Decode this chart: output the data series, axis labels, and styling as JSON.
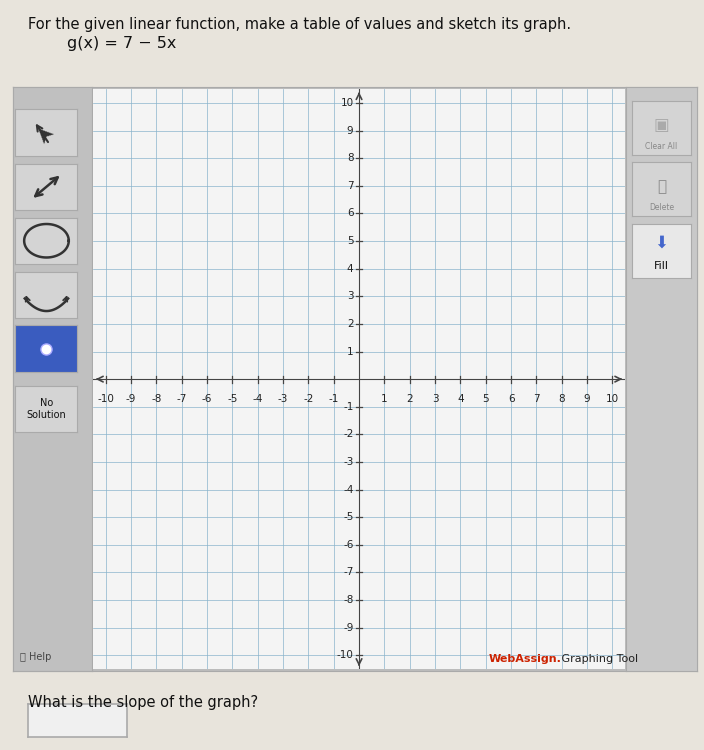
{
  "title_text": "For the given linear function, make a table of values and sketch its graph.",
  "equation": "g(x) = 7 − 5x",
  "xlim": [
    -10,
    10
  ],
  "ylim": [
    -10,
    10
  ],
  "xticks": [
    -10,
    -9,
    -8,
    -7,
    -6,
    -5,
    -4,
    -3,
    -2,
    -1,
    1,
    2,
    3,
    4,
    5,
    6,
    7,
    8,
    9,
    10
  ],
  "yticks": [
    -10,
    -9,
    -8,
    -7,
    -6,
    -5,
    -4,
    -3,
    -2,
    -1,
    1,
    2,
    3,
    4,
    5,
    6,
    7,
    8,
    9,
    10
  ],
  "grid_color": "#8ab4cc",
  "axis_color": "#444444",
  "bg_color": "#f4f4f4",
  "outer_bg": "#bcbcbc",
  "left_panel_bg": "#c0c0c0",
  "right_panel_bg": "#c8c8c8",
  "btn_bg": "#d4d4d4",
  "btn_selected_bg": "#3a5cbf",
  "webassign_text": "WebAssign.",
  "webassign_color": "#cc2200",
  "graphing_tool_text": " Graphing Tool",
  "graphing_tool_color": "#222222",
  "slope_label": "What is the slope of the graph?",
  "help_text": "Help",
  "no_solution_text": "No\nSolution",
  "fill_text": "Fill",
  "tick_fontsize": 7.5,
  "page_bg": "#e8e4dc"
}
